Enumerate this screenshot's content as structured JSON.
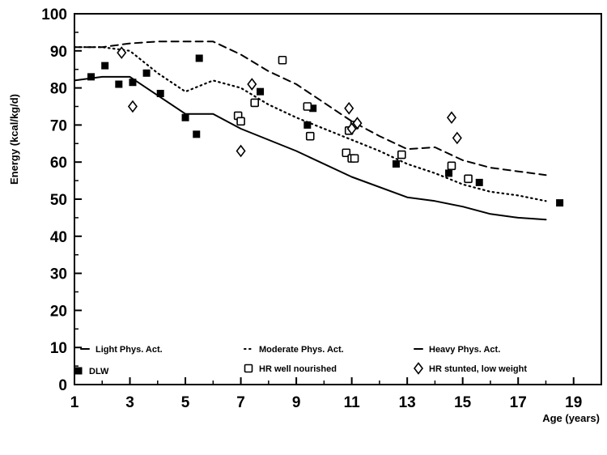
{
  "chart_data": {
    "type": "line",
    "xlabel": "Age (years)",
    "ylabel": "Energy (kcal/kg/d)",
    "xlim": [
      1,
      20
    ],
    "ylim": [
      0,
      100
    ],
    "x_ticks": [
      1,
      3,
      5,
      7,
      9,
      11,
      13,
      15,
      17,
      19
    ],
    "y_ticks": [
      0,
      10,
      20,
      30,
      40,
      50,
      60,
      70,
      80,
      90,
      100
    ],
    "grid": false,
    "legend_placement": "bottom",
    "series": [
      {
        "name": "Light Phys. Act.",
        "kind": "line",
        "style": "solid",
        "points": [
          [
            1,
            82
          ],
          [
            2,
            83
          ],
          [
            3,
            83
          ],
          [
            4,
            78
          ],
          [
            5,
            73
          ],
          [
            6,
            73
          ],
          [
            7,
            69
          ],
          [
            9,
            63
          ],
          [
            11,
            56
          ],
          [
            13,
            50.5
          ],
          [
            14,
            49.5
          ],
          [
            15,
            48
          ],
          [
            16,
            46
          ],
          [
            17,
            45
          ],
          [
            18,
            44.5
          ]
        ]
      },
      {
        "name": "Moderate Phys. Act.",
        "kind": "line",
        "style": "dotted",
        "points": [
          [
            1,
            91
          ],
          [
            2,
            91
          ],
          [
            3,
            90
          ],
          [
            4,
            84
          ],
          [
            5,
            79
          ],
          [
            6,
            82
          ],
          [
            7,
            80
          ],
          [
            8,
            75.5
          ],
          [
            9,
            72
          ],
          [
            10,
            69
          ],
          [
            11,
            66
          ],
          [
            12,
            63
          ],
          [
            13,
            59.5
          ],
          [
            14,
            57
          ],
          [
            15,
            54
          ],
          [
            16,
            52
          ],
          [
            17,
            51
          ],
          [
            18,
            49.5
          ]
        ]
      },
      {
        "name": "Heavy Phys. Act.",
        "kind": "line",
        "style": "dashed",
        "points": [
          [
            1,
            91
          ],
          [
            2,
            91
          ],
          [
            3,
            92
          ],
          [
            4,
            92.5
          ],
          [
            5,
            92.5
          ],
          [
            6,
            92.5
          ],
          [
            7,
            89
          ],
          [
            8,
            84.5
          ],
          [
            9,
            81
          ],
          [
            10,
            76
          ],
          [
            11,
            71
          ],
          [
            12,
            67
          ],
          [
            13,
            63.5
          ],
          [
            14,
            64
          ],
          [
            15,
            60.5
          ],
          [
            16,
            58.5
          ],
          [
            17,
            57.5
          ],
          [
            18,
            56.5
          ]
        ]
      },
      {
        "name": "DLW",
        "kind": "marker",
        "marker": "filled-square",
        "points": [
          [
            1.6,
            83
          ],
          [
            2.1,
            86
          ],
          [
            2.6,
            81
          ],
          [
            3.1,
            81.5
          ],
          [
            3.6,
            84
          ],
          [
            4.1,
            78.5
          ],
          [
            5.0,
            72
          ],
          [
            5.4,
            67.5
          ],
          [
            5.5,
            88
          ],
          [
            7.7,
            79
          ],
          [
            9.4,
            70
          ],
          [
            9.6,
            74.5
          ],
          [
            12.6,
            59.5
          ],
          [
            14.5,
            57
          ],
          [
            15.6,
            54.5
          ],
          [
            18.5,
            49
          ]
        ]
      },
      {
        "name": "HR well nourished",
        "kind": "marker",
        "marker": "open-square",
        "points": [
          [
            6.9,
            72.5
          ],
          [
            7.0,
            71
          ],
          [
            7.5,
            76
          ],
          [
            8.5,
            87.5
          ],
          [
            9.4,
            75
          ],
          [
            9.5,
            67
          ],
          [
            10.8,
            62.5
          ],
          [
            10.9,
            68.5
          ],
          [
            11.0,
            61
          ],
          [
            11.1,
            61
          ],
          [
            11.1,
            70
          ],
          [
            12.8,
            62
          ],
          [
            14.6,
            59
          ],
          [
            15.2,
            55.5
          ]
        ]
      },
      {
        "name": "HR stunted, low weight",
        "kind": "marker",
        "marker": "open-diamond",
        "points": [
          [
            2.7,
            89.5
          ],
          [
            3.1,
            75
          ],
          [
            7.0,
            63
          ],
          [
            7.4,
            81
          ],
          [
            10.9,
            74.5
          ],
          [
            11.0,
            69
          ],
          [
            11.2,
            70.5
          ],
          [
            14.6,
            72
          ],
          [
            14.8,
            66.5
          ]
        ]
      }
    ]
  }
}
